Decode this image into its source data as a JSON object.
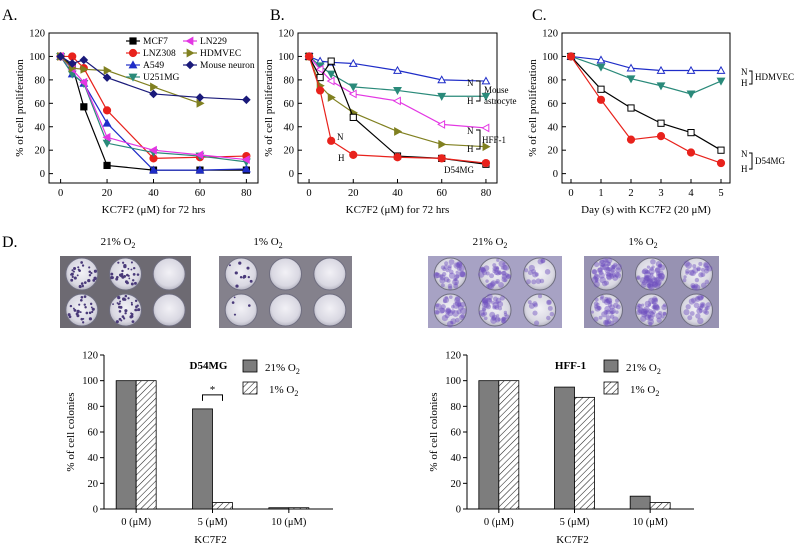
{
  "figure": {
    "panel_letters": [
      "A.",
      "B.",
      "C.",
      "D."
    ]
  },
  "photos": {
    "left": {
      "labels": [
        "21% O",
        "1% O"
      ]
    },
    "right": {
      "labels": [
        "21% O",
        "1% O"
      ]
    },
    "label_subscript": "2"
  },
  "chart_data": [
    {
      "id": "A",
      "type": "line",
      "xlabel": "KC7F2 (μM) for 72 hrs",
      "ylabel": "% of cell proliferation",
      "xlim": [
        -5,
        85
      ],
      "ylim": [
        -8,
        120
      ],
      "xticks": [
        0,
        20,
        40,
        60,
        80
      ],
      "yticks": [
        0,
        20,
        40,
        60,
        80,
        100,
        120
      ],
      "legend_position": "top",
      "series": [
        {
          "name": "MCF7",
          "color": "#000000",
          "marker": "square",
          "x": [
            0,
            5,
            10,
            20,
            40,
            60,
            80
          ],
          "y": [
            100,
            92,
            57,
            7,
            3,
            3,
            3
          ]
        },
        {
          "name": "LNZ308",
          "color": "#e8221c",
          "marker": "circle",
          "x": [
            0,
            5,
            10,
            20,
            40,
            60,
            80
          ],
          "y": [
            100,
            100,
            90,
            54,
            13,
            14,
            15
          ]
        },
        {
          "name": "A549",
          "color": "#1f2dc8",
          "marker": "triangle",
          "x": [
            0,
            5,
            10,
            20,
            40,
            60,
            80
          ],
          "y": [
            100,
            85,
            77,
            43,
            3,
            3,
            4
          ]
        },
        {
          "name": "U251MG",
          "color": "#2a8a7a",
          "marker": "triangle-down",
          "x": [
            0,
            5,
            10,
            20,
            40,
            60,
            80
          ],
          "y": [
            100,
            85,
            77,
            26,
            18,
            15,
            10
          ]
        },
        {
          "name": "LN229",
          "color": "#e337e3",
          "marker": "triangle-left",
          "x": [
            0,
            5,
            10,
            20,
            40,
            60,
            80
          ],
          "y": [
            100,
            89,
            78,
            31,
            20,
            16,
            12
          ]
        },
        {
          "name": "HDMVEC",
          "color": "#808020",
          "marker": "triangle-right",
          "x": [
            0,
            5,
            10,
            20,
            40,
            60
          ],
          "y": [
            100,
            90,
            89,
            88,
            74,
            60
          ]
        },
        {
          "name": "Mouse neuron",
          "color": "#1a1a7a",
          "marker": "diamond",
          "x": [
            0,
            5,
            10,
            20,
            40,
            60,
            80
          ],
          "y": [
            100,
            94,
            97,
            82,
            68,
            65,
            63
          ]
        }
      ]
    },
    {
      "id": "B",
      "type": "line",
      "xlabel": "KC7F2 (μM) for 72 hrs",
      "ylabel": "% of cell proliferation",
      "xlim": [
        -5,
        85
      ],
      "ylim": [
        -8,
        120
      ],
      "xticks": [
        0,
        20,
        40,
        60,
        80
      ],
      "yticks": [
        0,
        20,
        40,
        60,
        80,
        100,
        120
      ],
      "annotations": [
        "N",
        "H",
        "Mouse astrocyte",
        "HFF-1",
        "D54MG"
      ],
      "series": [
        {
          "name": "Mouse astrocyte N",
          "color": "#1f2dc8",
          "marker": "triangle-open",
          "x": [
            0,
            5,
            10,
            20,
            40,
            60,
            80
          ],
          "y": [
            100,
            96,
            95,
            94,
            88,
            80,
            79
          ]
        },
        {
          "name": "Mouse astrocyte H",
          "color": "#2a8a7a",
          "marker": "triangle-down",
          "x": [
            0,
            5,
            10,
            20,
            40,
            60,
            80
          ],
          "y": [
            100,
            92,
            85,
            74,
            71,
            66,
            66
          ]
        },
        {
          "name": "HFF-1 N",
          "color": "#e337e3",
          "marker": "triangle-left-open",
          "x": [
            0,
            5,
            10,
            20,
            40,
            60,
            80
          ],
          "y": [
            100,
            89,
            79,
            68,
            62,
            42,
            39
          ]
        },
        {
          "name": "HFF-1 H",
          "color": "#808020",
          "marker": "triangle-right",
          "x": [
            0,
            5,
            10,
            20,
            40,
            60,
            80
          ],
          "y": [
            100,
            75,
            65,
            52,
            36,
            25,
            23
          ]
        },
        {
          "name": "D54MG N",
          "color": "#000000",
          "marker": "square-open",
          "x": [
            0,
            5,
            10,
            20,
            40,
            60,
            80
          ],
          "y": [
            100,
            82,
            96,
            48,
            15,
            13,
            8
          ]
        },
        {
          "name": "D54MG H",
          "color": "#e8221c",
          "marker": "circle",
          "x": [
            0,
            5,
            10,
            20,
            40,
            60,
            80
          ],
          "y": [
            100,
            71,
            28,
            16,
            14,
            13,
            9
          ]
        }
      ]
    },
    {
      "id": "C",
      "type": "line",
      "xlabel": "Day (s) with KC7F2 (20 μM)",
      "ylabel": "% of cell proliferation",
      "xlim": [
        -0.3,
        5.3
      ],
      "ylim": [
        -8,
        120
      ],
      "xticks": [
        0,
        1,
        2,
        3,
        4,
        5
      ],
      "yticks": [
        0,
        20,
        40,
        60,
        80,
        100,
        120
      ],
      "annotations": [
        "N",
        "H",
        "HDMVEC",
        "D54MG"
      ],
      "series": [
        {
          "name": "HDMVEC N",
          "color": "#1f2dc8",
          "marker": "triangle-open",
          "x": [
            0,
            1,
            2,
            3,
            4,
            5
          ],
          "y": [
            100,
            97,
            90,
            88,
            88,
            88
          ]
        },
        {
          "name": "HDMVEC H",
          "color": "#2a8a7a",
          "marker": "triangle-down",
          "x": [
            0,
            1,
            2,
            3,
            4,
            5
          ],
          "y": [
            100,
            91,
            81,
            75,
            68,
            79
          ]
        },
        {
          "name": "D54MG N",
          "color": "#000000",
          "marker": "square-open",
          "x": [
            0,
            1,
            2,
            3,
            4,
            5
          ],
          "y": [
            100,
            72,
            56,
            43,
            35,
            20
          ]
        },
        {
          "name": "D54MG H",
          "color": "#e8221c",
          "marker": "circle",
          "x": [
            0,
            1,
            2,
            3,
            4,
            5
          ],
          "y": [
            100,
            63,
            29,
            32,
            18,
            9
          ]
        }
      ]
    },
    {
      "id": "D-left",
      "type": "bar",
      "title": "D54MG",
      "xlabel": "KC7F2",
      "ylabel": "% of cell colonies",
      "categories": [
        "0 (μM)",
        "5 (μM)",
        "10 (μM)"
      ],
      "ylim": [
        0,
        120
      ],
      "yticks": [
        0,
        20,
        40,
        60,
        80,
        100,
        120
      ],
      "legend": [
        "21% O",
        "1% O"
      ],
      "legend_subscript": "2",
      "significance": "*",
      "series": [
        {
          "name": "21% O2",
          "fill": "solid-gray",
          "values": [
            100,
            78,
            1
          ]
        },
        {
          "name": "1% O2",
          "fill": "hatched",
          "values": [
            100,
            5,
            1
          ]
        }
      ]
    },
    {
      "id": "D-right",
      "type": "bar",
      "title": "HFF-1",
      "xlabel": "KC7F2",
      "ylabel": "% of cell colonies",
      "categories": [
        "0 (μM)",
        "5 (μM)",
        "10 (μM)"
      ],
      "ylim": [
        0,
        120
      ],
      "yticks": [
        0,
        20,
        40,
        60,
        80,
        100,
        120
      ],
      "legend": [
        "21% O",
        "1% O"
      ],
      "legend_subscript": "2",
      "series": [
        {
          "name": "21% O2",
          "fill": "solid-gray",
          "values": [
            100,
            95,
            10
          ]
        },
        {
          "name": "1% O2",
          "fill": "hatched",
          "values": [
            100,
            87,
            5
          ]
        }
      ]
    }
  ]
}
